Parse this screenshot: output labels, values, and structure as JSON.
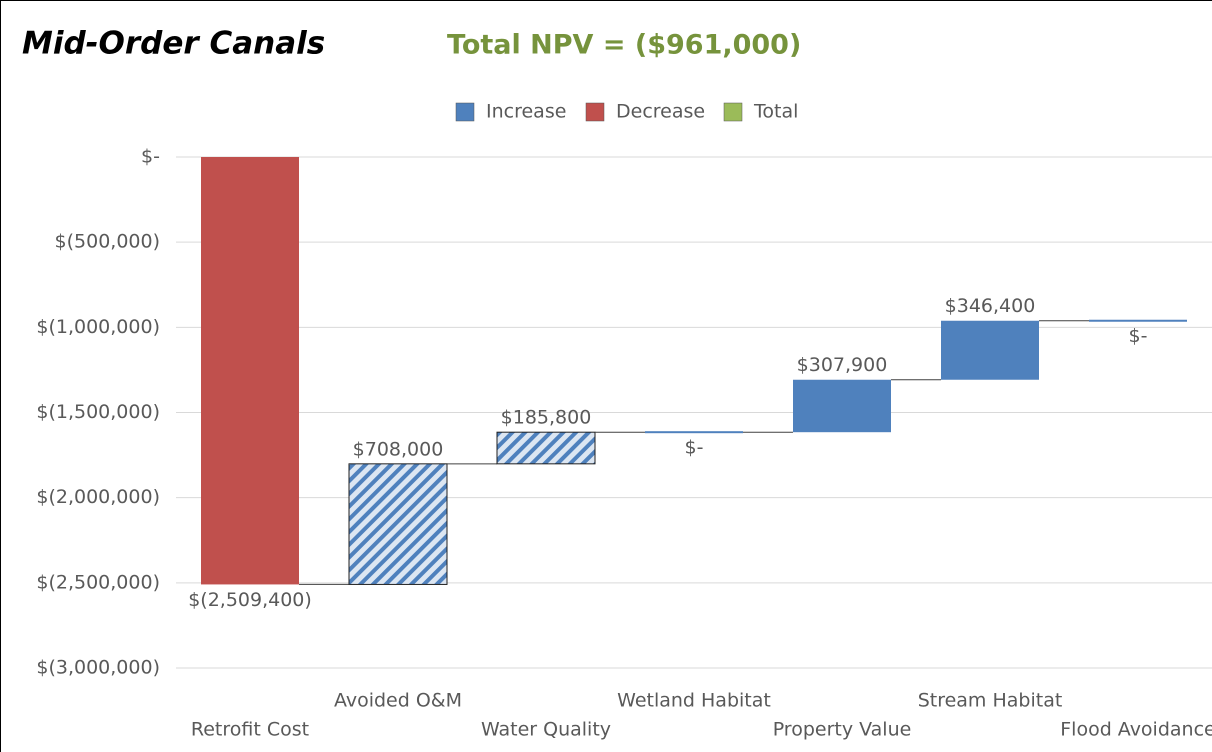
{
  "chart_data": {
    "type": "waterfall",
    "title": "Mid-Order Canals",
    "subtitle": "Total NPV = ($961,000)",
    "legend": [
      {
        "name": "Increase",
        "color": "#4f81bd"
      },
      {
        "name": "Decrease",
        "color": "#c0504d"
      },
      {
        "name": "Total",
        "color": "#9bbb59"
      }
    ],
    "categories": [
      "Retrofit Cost",
      "Avoided O&M",
      "Water Quality",
      "Wetland Habitat",
      "Property Value",
      "Stream Habitat",
      "Flood Avoidance"
    ],
    "values": [
      -2509400,
      708000,
      185800,
      0,
      307900,
      346400,
      0
    ],
    "value_labels": [
      "$(2,509,400)",
      "$708,000",
      "$185,800",
      "$-",
      "$307,900",
      "$346,400",
      "$-"
    ],
    "hatched": [
      false,
      true,
      true,
      false,
      false,
      false,
      false
    ],
    "ylim": [
      -3000000,
      0
    ],
    "yticks": [
      {
        "value": 0,
        "label": "$-"
      },
      {
        "value": -500000,
        "label": "$(500,000)"
      },
      {
        "value": -1000000,
        "label": "$(1,000,000)"
      },
      {
        "value": -1500000,
        "label": "$(1,500,000)"
      },
      {
        "value": -2000000,
        "label": "$(2,000,000)"
      },
      {
        "value": -2500000,
        "label": "$(2,500,000)"
      },
      {
        "value": -3000000,
        "label": "$(3,000,000)"
      }
    ],
    "grid": true
  }
}
